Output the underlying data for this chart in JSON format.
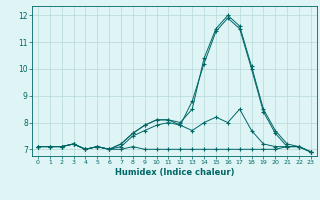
{
  "xlabel": "Humidex (Indice chaleur)",
  "x": [
    0,
    1,
    2,
    3,
    4,
    5,
    6,
    7,
    8,
    9,
    10,
    11,
    12,
    13,
    14,
    15,
    16,
    17,
    18,
    19,
    20,
    21,
    22,
    23
  ],
  "line1": [
    7.1,
    7.1,
    7.1,
    7.2,
    7.0,
    7.1,
    7.0,
    7.0,
    7.1,
    7.0,
    7.0,
    7.0,
    7.0,
    7.0,
    7.0,
    7.0,
    7.0,
    7.0,
    7.0,
    7.0,
    7.0,
    7.1,
    7.1,
    6.9
  ],
  "line2": [
    7.1,
    7.1,
    7.1,
    7.2,
    7.0,
    7.1,
    7.0,
    7.1,
    7.5,
    7.7,
    7.9,
    8.0,
    7.9,
    7.7,
    8.0,
    8.2,
    8.0,
    8.5,
    7.7,
    7.2,
    7.1,
    7.1,
    7.1,
    6.9
  ],
  "line3": [
    7.1,
    7.1,
    7.1,
    7.2,
    7.0,
    7.1,
    7.0,
    7.2,
    7.6,
    7.9,
    8.1,
    8.1,
    8.0,
    8.5,
    10.4,
    11.5,
    12.0,
    11.6,
    10.1,
    8.5,
    7.7,
    7.2,
    7.1,
    6.9
  ],
  "line4": [
    7.1,
    7.1,
    7.1,
    7.2,
    7.0,
    7.1,
    7.0,
    7.2,
    7.6,
    7.9,
    8.1,
    8.1,
    7.9,
    8.8,
    10.2,
    11.4,
    11.9,
    11.5,
    10.0,
    8.4,
    7.6,
    7.1,
    7.1,
    6.9
  ],
  "line_color": "#006666",
  "bg_color": "#dff4f4",
  "grid_color": "#b8d8d8",
  "ylim": [
    6.75,
    12.35
  ],
  "xlim": [
    -0.5,
    23.5
  ],
  "yticks": [
    7,
    8,
    9,
    10,
    11,
    12
  ],
  "xticks": [
    0,
    1,
    2,
    3,
    4,
    5,
    6,
    7,
    8,
    9,
    10,
    11,
    12,
    13,
    14,
    15,
    16,
    17,
    18,
    19,
    20,
    21,
    22,
    23
  ]
}
